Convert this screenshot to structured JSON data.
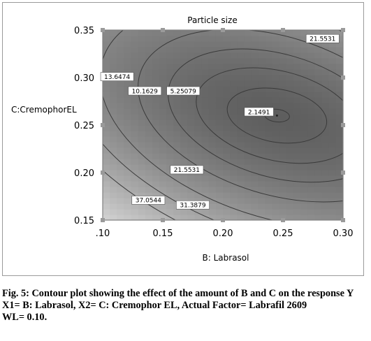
{
  "chart_data": {
    "type": "contour",
    "title": "Particle size",
    "xlabel": "B: Labrasol",
    "ylabel": "C:CremophorEL",
    "xlim": [
      0.1,
      0.3
    ],
    "ylim": [
      0.15,
      0.35
    ],
    "x_ticks": [
      ".10",
      "0.15",
      "0.20",
      "0.25",
      "0.30"
    ],
    "y_ticks": [
      "0.15",
      "0.20",
      "0.25",
      "0.30",
      "0.35"
    ],
    "minimum": {
      "x": 0.245,
      "y": 0.26
    },
    "contour_levels": [
      "2.1491",
      "5.25079",
      "10.1629",
      "13.6474",
      "21.5531",
      "21.5531",
      "31.3879",
      "37.0544"
    ],
    "labels": [
      {
        "text": "21.5531",
        "x": 0.283,
        "y": 0.341
      },
      {
        "text": "13.6474",
        "x": 0.112,
        "y": 0.301
      },
      {
        "text": "10.1629",
        "x": 0.135,
        "y": 0.286
      },
      {
        "text": "5.25079",
        "x": 0.167,
        "y": 0.286
      },
      {
        "text": "2.1491",
        "x": 0.23,
        "y": 0.264
      },
      {
        "text": "21.5531",
        "x": 0.17,
        "y": 0.203
      },
      {
        "text": "37.0544",
        "x": 0.138,
        "y": 0.171
      },
      {
        "text": "31.3879",
        "x": 0.175,
        "y": 0.166
      }
    ],
    "colors": {
      "dark": "#5e5e5e",
      "light": "#e6e6e6",
      "line": "#3a3a3a"
    }
  },
  "caption": {
    "title": "Fig. 5: Contour plot showing the effect of the amount of B and C on the response Y",
    "line2": "X1= B: Labrasol, X2= C: Cremophor EL, Actual Factor= Labrafil 2609",
    "line3": "WL= 0.10."
  }
}
